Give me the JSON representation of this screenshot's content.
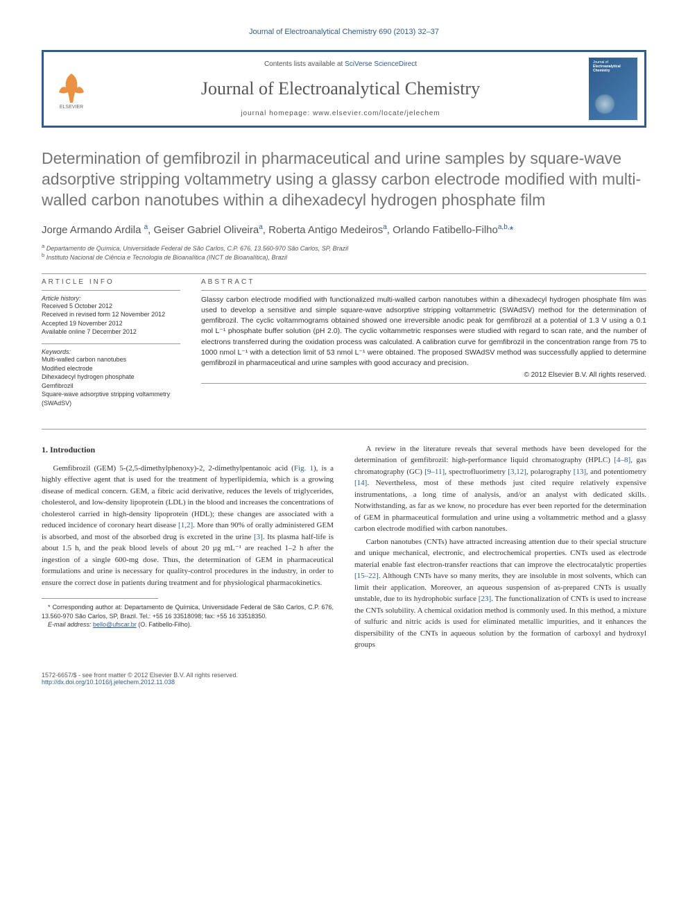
{
  "running_head": "Journal of Electroanalytical Chemistry 690 (2013) 32–37",
  "masthead": {
    "contents_prefix": "Contents lists available at ",
    "contents_link": "SciVerse ScienceDirect",
    "journal_name": "Journal of Electroanalytical Chemistry",
    "homepage_prefix": "journal homepage: ",
    "homepage_url": "www.elsevier.com/locate/jelechem",
    "cover_label_top": "Journal of",
    "cover_label_bottom": "Electroanalytical Chemistry"
  },
  "title": "Determination of gemfibrozil in pharmaceutical and urine samples by square-wave adsorptive stripping voltammetry using a glassy carbon electrode modified with multi-walled carbon nanotubes within a dihexadecyl hydrogen phosphate film",
  "authors_html": "Jorge Armando Ardila <sup>a</sup>, Geiser Gabriel Oliveira<sup>a</sup>, Roberta Antigo Medeiros<sup>a</sup>, Orlando Fatibello-Filho<sup>a,b,</sup><span class='star'>*</span>",
  "affiliations": {
    "a": "Departamento de Química, Universidade Federal de São Carlos, C.P. 676, 13.560-970 São Carlos, SP, Brazil",
    "b": "Instituto Nacional de Ciência e Tecnologia de Bioanalítica (INCT de Bioanalítica), Brazil"
  },
  "article_info": {
    "heading": "ARTICLE INFO",
    "history_label": "Article history:",
    "received": "Received 5 October 2012",
    "revised": "Received in revised form 12 November 2012",
    "accepted": "Accepted 19 November 2012",
    "online": "Available online 7 December 2012",
    "keywords_label": "Keywords:",
    "keywords": [
      "Multi-walled carbon nanotubes",
      "Modified electrode",
      "Dihexadecyl hydrogen phosphate",
      "Gemfibrozil",
      "Square-wave adsorptive stripping voltammetry (SWAdSV)"
    ]
  },
  "abstract": {
    "heading": "ABSTRACT",
    "text": "Glassy carbon electrode modified with functionalized multi-walled carbon nanotubes within a dihexadecyl hydrogen phosphate film was used to develop a sensitive and simple square-wave adsorptive stripping voltammetric (SWAdSV) method for the determination of gemfibrozil. The cyclic voltammograms obtained showed one irreversible anodic peak for gemfibrozil at a potential of 1.3 V using a 0.1 mol L⁻¹ phosphate buffer solution (pH 2.0). The cyclic voltammetric responses were studied with regard to scan rate, and the number of electrons transferred during the oxidation process was calculated. A calibration curve for gemfibrozil in the concentration range from 75 to 1000 nmol L⁻¹ with a detection limit of 53 nmol L⁻¹ were obtained. The proposed SWAdSV method was successfully applied to determine gemfibrozil in pharmaceutical and urine samples with good accuracy and precision.",
    "copyright": "© 2012 Elsevier B.V. All rights reserved."
  },
  "body": {
    "section_heading": "1. Introduction",
    "p1_pre": "Gemfibrozil (GEM) 5-(2,5-dimethylphenoxy)-2, 2-dimethylpentanoic acid (",
    "p1_fig": "Fig. 1",
    "p1_mid1": "), is a highly effective agent that is used for the treatment of hyperlipidemia, which is a growing disease of medical concern. GEM, a fibric acid derivative, reduces the levels of triglycerides, cholesterol, and low-density lipoprotein (LDL) in the blood and increases the concentrations of cholesterol carried in high-density lipoprotein (HDL); these changes are associated with a reduced incidence of coronary heart disease ",
    "p1_ref1": "[1,2]",
    "p1_mid2": ". More than 90% of orally administered GEM is absorbed, and most of the absorbed drug is excreted in the urine ",
    "p1_ref2": "[3]",
    "p1_post": ". Its plasma half-life is about 1.5 h, and the peak blood levels of about 20 µg mL⁻¹ are reached 1–2 h after the ingestion of a single 600-mg dose. Thus, the determination of GEM in pharmaceutical formulations and urine is necessary for quality-control procedures in the industry, in order to ensure the correct dose in patients during treatment and for physiological pharmacokinetics.",
    "p2_pre": "A review in the literature reveals that several methods have been developed for the determination of gemfibrozil: high-performance liquid chromatography (HPLC) ",
    "p2_ref1": "[4–8]",
    "p2_mid1": ", gas chromatography (GC) ",
    "p2_ref2": "[9–11]",
    "p2_mid2": ", spectrofluorimetry ",
    "p2_ref3": "[3,12]",
    "p2_mid3": ", polarography ",
    "p2_ref4": "[13]",
    "p2_mid4": ", and potentiometry ",
    "p2_ref5": "[14]",
    "p2_post": ". Nevertheless, most of these methods just cited require relatively expensive instrumentations, a long time of analysis, and/or an analyst with dedicated skills. Notwithstanding, as far as we know, no procedure has ever been reported for the determination of GEM in pharmaceutical formulation and urine using a voltammetric method and a glassy carbon electrode modified with carbon nanotubes.",
    "p3_pre": "Carbon nanotubes (CNTs) have attracted increasing attention due to their special structure and unique mechanical, electronic, and electrochemical properties. CNTs used as electrode material enable fast electron-transfer reactions that can improve the electrocatalytic properties ",
    "p3_ref1": "[15–22]",
    "p3_mid": ". Although CNTs have so many merits, they are insoluble in most solvents, which can limit their application. Moreover, an aqueous suspension of as-prepared CNTs is usually unstable, due to its hydrophobic surface ",
    "p3_ref2": "[23]",
    "p3_post": ". The functionalization of CNTs is used to increase the CNTs solubility. A chemical oxidation method is commonly used. In this method, a mixture of sulfuric and nitric acids is used for eliminated metallic impurities, and it enhances the dispersibility of the CNTs in aqueous solution by the formation of carboxyl and hydroxyl groups"
  },
  "footnote": {
    "corr": "Corresponding author at: Departamento de Química, Universidade Federal de São Carlos, C.P. 676, 13.560-970 São Carlos, SP, Brazil. Tel.: +55 16 33518098; fax: +55 16 33518350.",
    "email_label": "E-mail address:",
    "email": "bello@ufscar.br",
    "email_person": "(O. Fatibello-Filho)."
  },
  "footer": {
    "issn_line": "1572-6657/$ - see front matter © 2012 Elsevier B.V. All rights reserved.",
    "doi": "http://dx.doi.org/10.1016/j.jelechem.2012.11.038"
  },
  "colors": {
    "link": "#2e5c8a",
    "rule": "#999999",
    "text": "#333333",
    "title_gray": "#747474"
  }
}
